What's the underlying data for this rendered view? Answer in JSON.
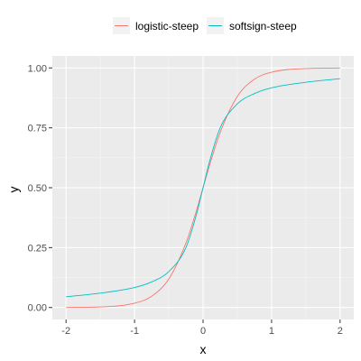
{
  "chart_data": {
    "type": "line",
    "title": "",
    "xlabel": "x",
    "ylabel": "y",
    "xlim": [
      -2.2,
      2.2
    ],
    "ylim": [
      -0.05,
      1.05
    ],
    "x_ticks": [
      -2,
      -1,
      0,
      1,
      2
    ],
    "x_tick_labels": [
      "-2",
      "-1",
      "0",
      "1",
      "2"
    ],
    "y_ticks": [
      0,
      0.25,
      0.5,
      0.75,
      1
    ],
    "y_tick_labels": [
      "0.00",
      "0.25",
      "0.50",
      "0.75",
      "1.00"
    ],
    "grid": true,
    "legend_position": "top",
    "background_color": "#ebebeb",
    "grid_color": "#ffffff",
    "x": [
      -2,
      -1.5,
      -1,
      -0.75,
      -0.5,
      -0.25,
      -0.1,
      0,
      0.1,
      0.25,
      0.5,
      0.75,
      1,
      1.5,
      2
    ],
    "series": [
      {
        "name": "logistic-steep",
        "color": "#F8766D",
        "values": [
          0.0003,
          0.0025,
          0.018,
          0.047,
          0.119,
          0.269,
          0.401,
          0.5,
          0.599,
          0.731,
          0.881,
          0.953,
          0.982,
          0.9975,
          0.9997
        ]
      },
      {
        "name": "softsign-steep",
        "color": "#00BFC4",
        "values": [
          0.045,
          0.06,
          0.0833,
          0.107,
          0.15,
          0.25,
          0.385,
          0.5,
          0.615,
          0.75,
          0.85,
          0.893,
          0.917,
          0.94,
          0.955
        ]
      }
    ]
  }
}
